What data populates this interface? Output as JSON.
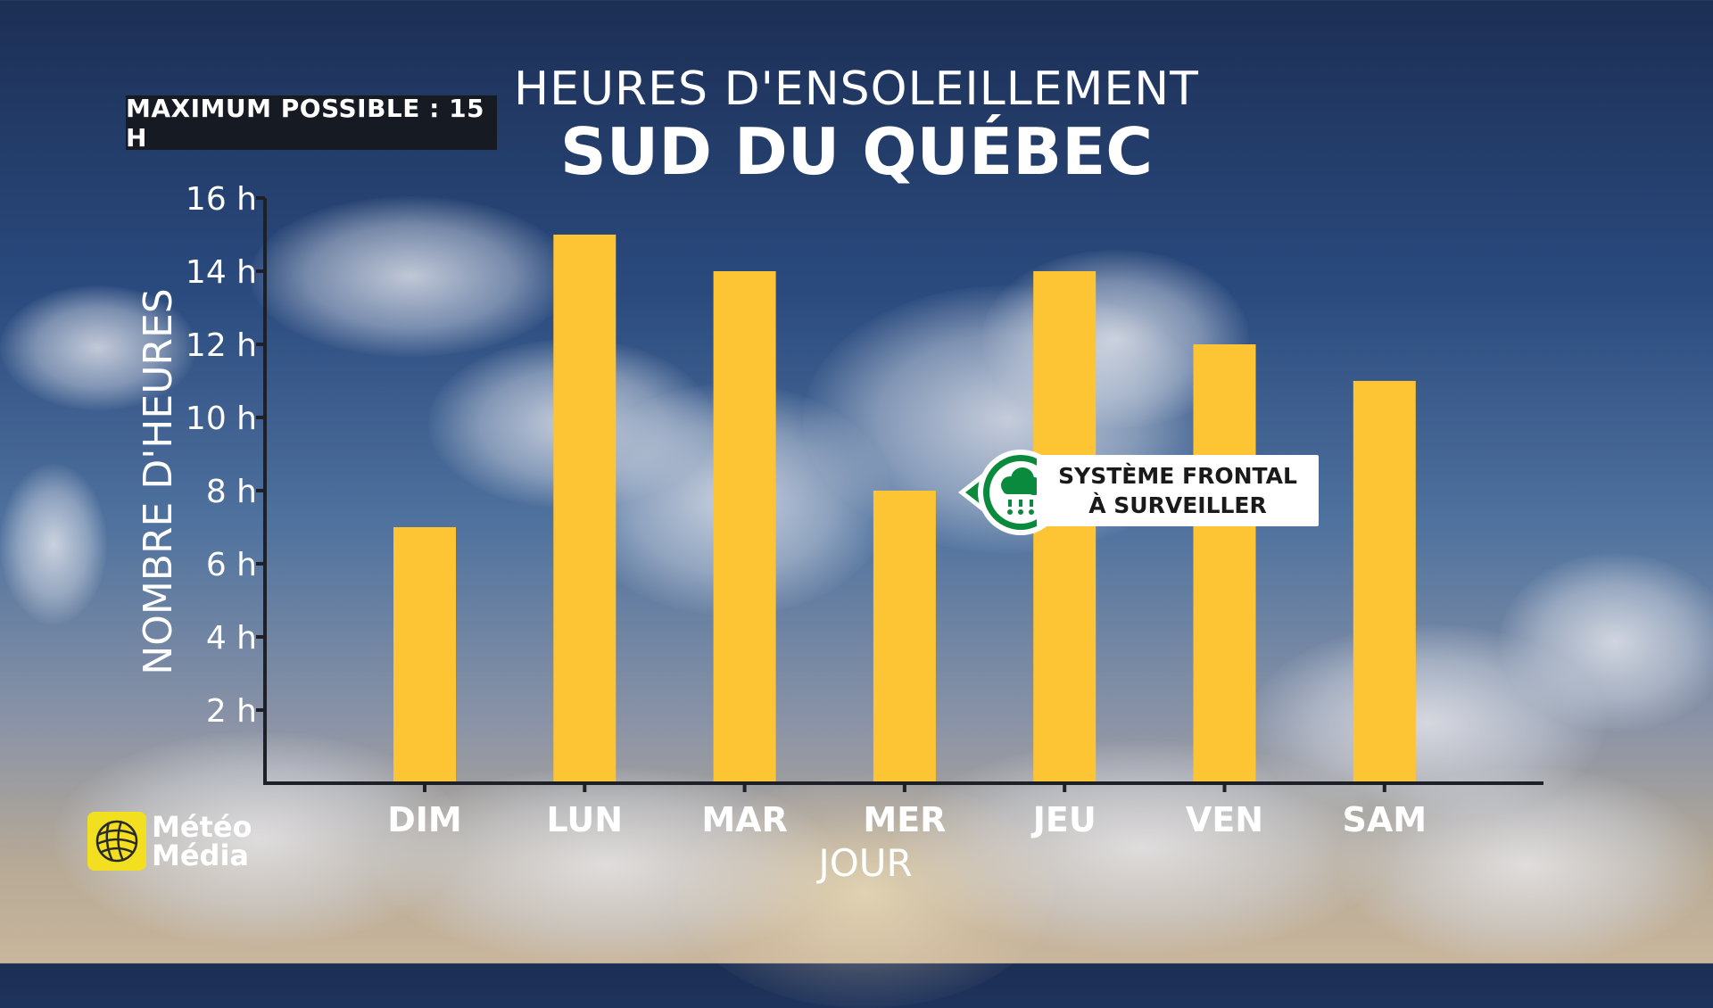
{
  "header": {
    "subtitle": "HEURES D'ENSOLEILLEMENT",
    "title": "SUD DU QUÉBEC"
  },
  "badge": {
    "label": "MAXIMUM POSSIBLE : 15 H"
  },
  "callout": {
    "line1": "SYSTÈME FRONTAL",
    "line2": "À SURVEILLER",
    "icon": "rain-cloud-icon",
    "color": "#0a8a3c",
    "category": "JEU"
  },
  "logo": {
    "line1": "Météo",
    "line2": "Média",
    "icon": "meteomedia-globe-icon",
    "color": "#f2df20"
  },
  "chart_data": {
    "type": "bar",
    "categories": [
      "DIM",
      "LUN",
      "MAR",
      "MER",
      "JEU",
      "VEN",
      "SAM"
    ],
    "values": [
      7,
      15,
      14,
      8,
      14,
      12,
      11
    ],
    "xlabel": "JOUR",
    "ylabel": "NOMBRE D'HEURES",
    "ylim": [
      0,
      16
    ],
    "yticks": [
      {
        "value": 2,
        "label": "2 h"
      },
      {
        "value": 4,
        "label": "4 h"
      },
      {
        "value": 6,
        "label": "6 h"
      },
      {
        "value": 8,
        "label": "8 h"
      },
      {
        "value": 10,
        "label": "10 h"
      },
      {
        "value": 12,
        "label": "12 h"
      },
      {
        "value": 14,
        "label": "14 h"
      },
      {
        "value": 16,
        "label": "16 h"
      }
    ],
    "bar_color": "#fdc433",
    "grid": false
  }
}
